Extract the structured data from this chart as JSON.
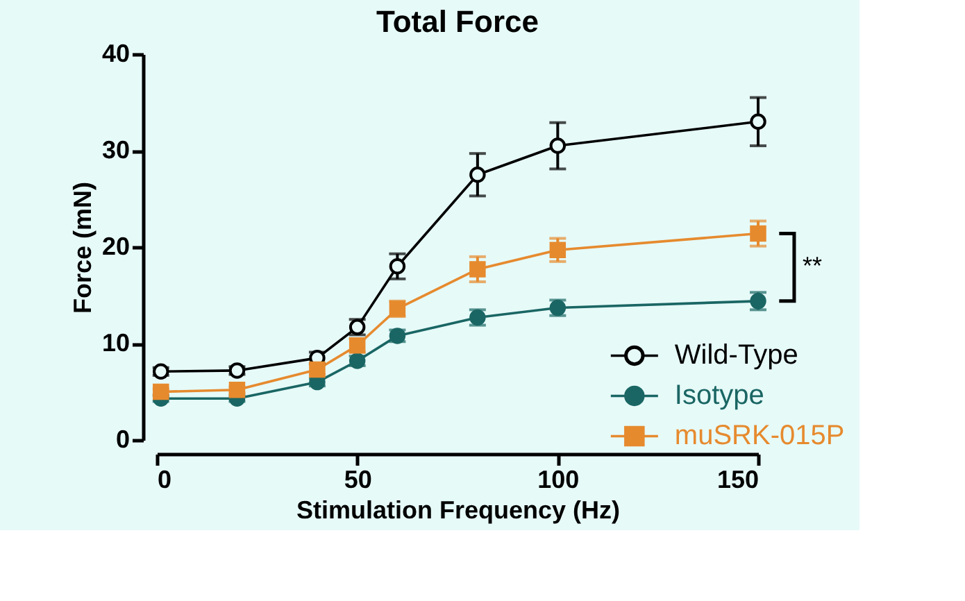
{
  "chart_data": {
    "type": "line",
    "title": "Total Force",
    "xlabel": "Stimulation Frequency (Hz)",
    "ylabel": "Force (mN)",
    "x": [
      1,
      20,
      40,
      50,
      60,
      80,
      100,
      150
    ],
    "series": [
      {
        "name": "Wild-Type",
        "color": "#000000",
        "marker": "circle",
        "values": [
          7.1,
          7.2,
          8.5,
          11.7,
          18.0,
          27.5,
          30.5,
          33.0
        ],
        "errors": [
          0.4,
          0.4,
          0.6,
          0.8,
          1.3,
          2.2,
          2.4,
          2.5
        ]
      },
      {
        "name": "Isotype",
        "color": "#1a6664",
        "marker": "circle",
        "values": [
          4.3,
          4.3,
          6.0,
          8.2,
          10.8,
          12.7,
          13.7,
          14.4
        ],
        "errors": [
          0.3,
          0.3,
          0.4,
          0.5,
          0.6,
          0.8,
          0.8,
          0.9
        ]
      },
      {
        "name": "muSRK-015P",
        "color": "#e68a2e",
        "marker": "square",
        "values": [
          5.0,
          5.2,
          7.3,
          9.8,
          13.6,
          17.7,
          19.7,
          21.4
        ],
        "errors": [
          0.3,
          0.3,
          0.5,
          0.7,
          0.8,
          1.3,
          1.2,
          1.3
        ]
      }
    ],
    "xlim": [
      0,
      150
    ],
    "xticks": [
      0,
      50,
      100,
      150
    ],
    "ylim": [
      0,
      40
    ],
    "yticks": [
      0,
      10,
      20,
      30,
      40
    ],
    "grid": false,
    "legend": "bottom right",
    "line_style": "solid",
    "annotations": [
      "**"
    ]
  }
}
